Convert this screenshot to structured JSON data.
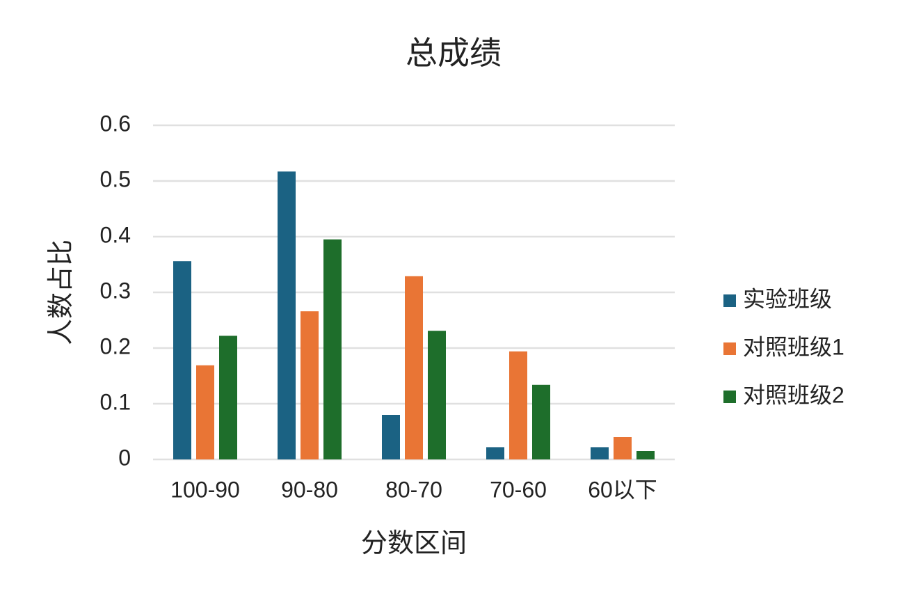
{
  "chart_data": {
    "type": "bar",
    "title": "总成绩",
    "x_label": "分数区间",
    "y_label": "人数占比",
    "categories": [
      "100-90",
      "90-80",
      "80-70",
      "70-60",
      "60以下"
    ],
    "series": [
      {
        "name": "实验班级",
        "color": "#1b6283",
        "values": [
          0.356,
          0.517,
          0.08,
          0.022,
          0.022
        ]
      },
      {
        "name": "对照班级1",
        "color": "#e97535",
        "values": [
          0.169,
          0.266,
          0.329,
          0.194,
          0.04
        ]
      },
      {
        "name": "对照班级2",
        "color": "#1e6e2b",
        "values": [
          0.222,
          0.395,
          0.231,
          0.134,
          0.015
        ]
      }
    ],
    "ylim": [
      0,
      0.6
    ],
    "yticks": [
      0,
      0.1,
      0.2,
      0.3,
      0.4,
      0.5,
      0.6
    ],
    "grid": true,
    "legend": "right"
  }
}
